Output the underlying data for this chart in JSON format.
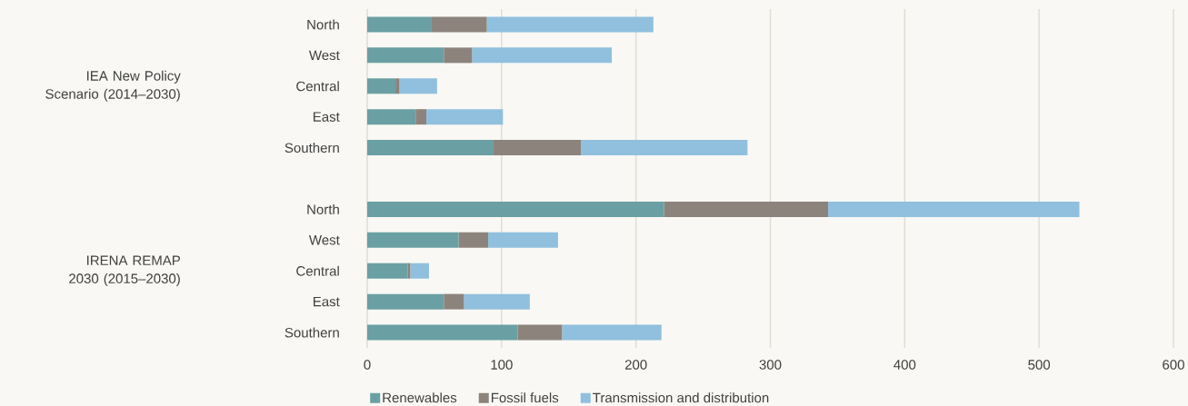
{
  "chart_data": {
    "type": "bar",
    "orientation": "horizontal",
    "stacked": true,
    "categories": [
      "North",
      "West",
      "Central",
      "East",
      "Southern",
      null,
      "North",
      "West",
      "Central",
      "East",
      "Southern"
    ],
    "series": [
      {
        "name": "Renewables",
        "color": "#6aa0a3",
        "values": [
          48,
          57,
          21,
          36,
          94,
          null,
          221,
          68,
          30,
          57,
          112
        ]
      },
      {
        "name": "Fossil fuels",
        "color": "#8c847c",
        "values": [
          41,
          21,
          3,
          8,
          65,
          null,
          122,
          22,
          2,
          15,
          33
        ]
      },
      {
        "name": "Transmission and distribution",
        "color": "#90c0de",
        "values": [
          124,
          104,
          28,
          57,
          124,
          null,
          187,
          52,
          14,
          49,
          74
        ]
      }
    ],
    "annotations": [
      "IEA New Policy Scenario (2014–2030)",
      "IRENA REMAP 2030 (2015–2030)"
    ],
    "xlim": [
      0,
      600
    ],
    "xticks": [
      0,
      100,
      200,
      300,
      400,
      500,
      600
    ],
    "grid": "x",
    "legend": "bottom"
  }
}
